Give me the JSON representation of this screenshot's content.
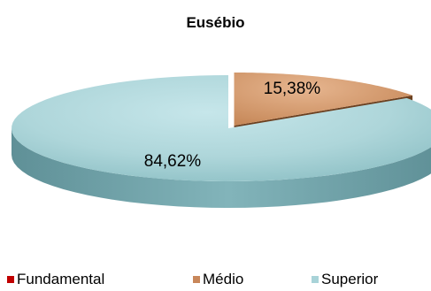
{
  "chart_data": {
    "type": "pie",
    "title": "Eusébio",
    "slices": [
      {
        "label": "Fundamental",
        "value": 0,
        "data_label": "",
        "color": "#c00000"
      },
      {
        "label": "Médio",
        "value": 15.38,
        "data_label": "15,38%",
        "color": "#c8875a"
      },
      {
        "label": "Superior",
        "value": 84.62,
        "data_label": "84,62%",
        "color": "#a8d3d8"
      }
    ],
    "legend_position": "bottom",
    "style": "3d-exploded"
  }
}
